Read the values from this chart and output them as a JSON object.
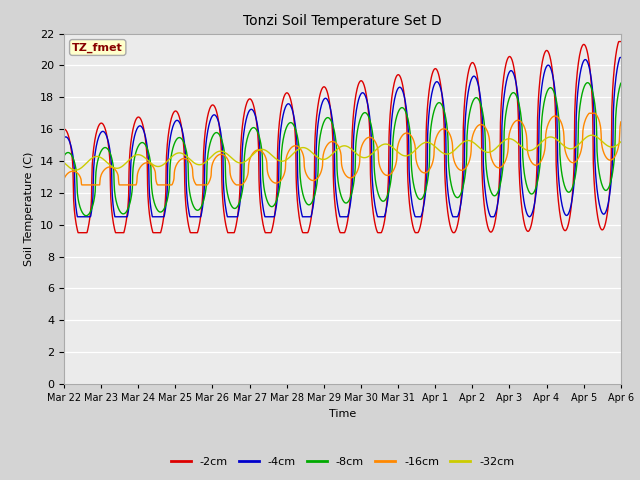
{
  "title": "Tonzi Soil Temperature Set D",
  "xlabel": "Time",
  "ylabel": "Soil Temperature (C)",
  "ylim": [
    0,
    22
  ],
  "yticks": [
    0,
    2,
    4,
    6,
    8,
    10,
    12,
    14,
    16,
    18,
    20,
    22
  ],
  "legend_label": "TZ_fmet",
  "legend_box_color": "#ffffcc",
  "legend_box_edge": "#aaaaaa",
  "legend_text_color": "#880000",
  "fig_bg_color": "#d4d4d4",
  "plot_bg_color": "#ebebeb",
  "line_colors": {
    "-2cm": "#dd0000",
    "-4cm": "#0000cc",
    "-8cm": "#00aa00",
    "-16cm": "#ff8800",
    "-32cm": "#cccc00"
  },
  "xtick_labels": [
    "Mar 22",
    "Mar 23",
    "Mar 24",
    "Mar 25",
    "Mar 26",
    "Mar 27",
    "Mar 28",
    "Mar 29",
    "Mar 30",
    "Mar 31",
    "Apr 1",
    "Apr 2",
    "Apr 3",
    "Apr 4",
    "Apr 5",
    "Apr 6"
  ],
  "days": 15
}
